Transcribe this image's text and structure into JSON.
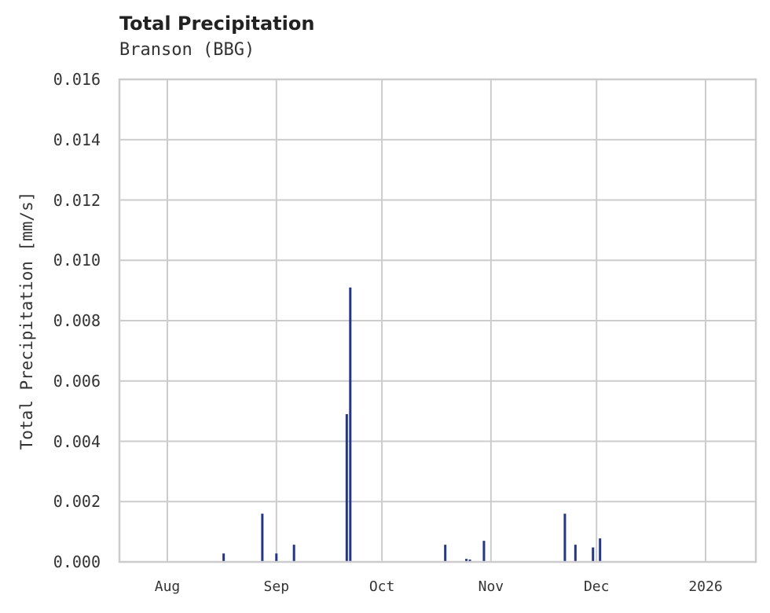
{
  "chart_data": {
    "type": "bar",
    "title": "Total Precipitation",
    "subtitle": "Branson (BBG)",
    "xlabel": "",
    "ylabel": "Total Precipitation [mm/s]",
    "ylim": [
      0,
      0.016
    ],
    "grid": true,
    "yticks": [
      "0.000",
      "0.002",
      "0.004",
      "0.006",
      "0.008",
      "0.010",
      "0.012",
      "0.014",
      "0.016"
    ],
    "xticks": [
      "Aug",
      "Sep",
      "Oct",
      "Nov",
      "Dec",
      "2026"
    ],
    "bar_color": "#223590",
    "series": [
      {
        "name": "Total Precipitation",
        "points": [
          {
            "date": "2025-08-17",
            "value": 0.00028
          },
          {
            "date": "2025-08-28",
            "value": 0.0016
          },
          {
            "date": "2025-09-01",
            "value": 0.00028
          },
          {
            "date": "2025-09-06",
            "value": 0.00057
          },
          {
            "date": "2025-09-21",
            "value": 0.0049
          },
          {
            "date": "2025-09-22",
            "value": 0.0091
          },
          {
            "date": "2025-10-19",
            "value": 0.00057
          },
          {
            "date": "2025-10-25",
            "value": 0.0001
          },
          {
            "date": "2025-10-26",
            "value": 8e-05
          },
          {
            "date": "2025-10-30",
            "value": 0.0007
          },
          {
            "date": "2025-11-22",
            "value": 0.0016
          },
          {
            "date": "2025-11-25",
            "value": 0.00057
          },
          {
            "date": "2025-11-30",
            "value": 0.00048
          },
          {
            "date": "2025-12-02",
            "value": 0.00078
          }
        ]
      }
    ]
  }
}
